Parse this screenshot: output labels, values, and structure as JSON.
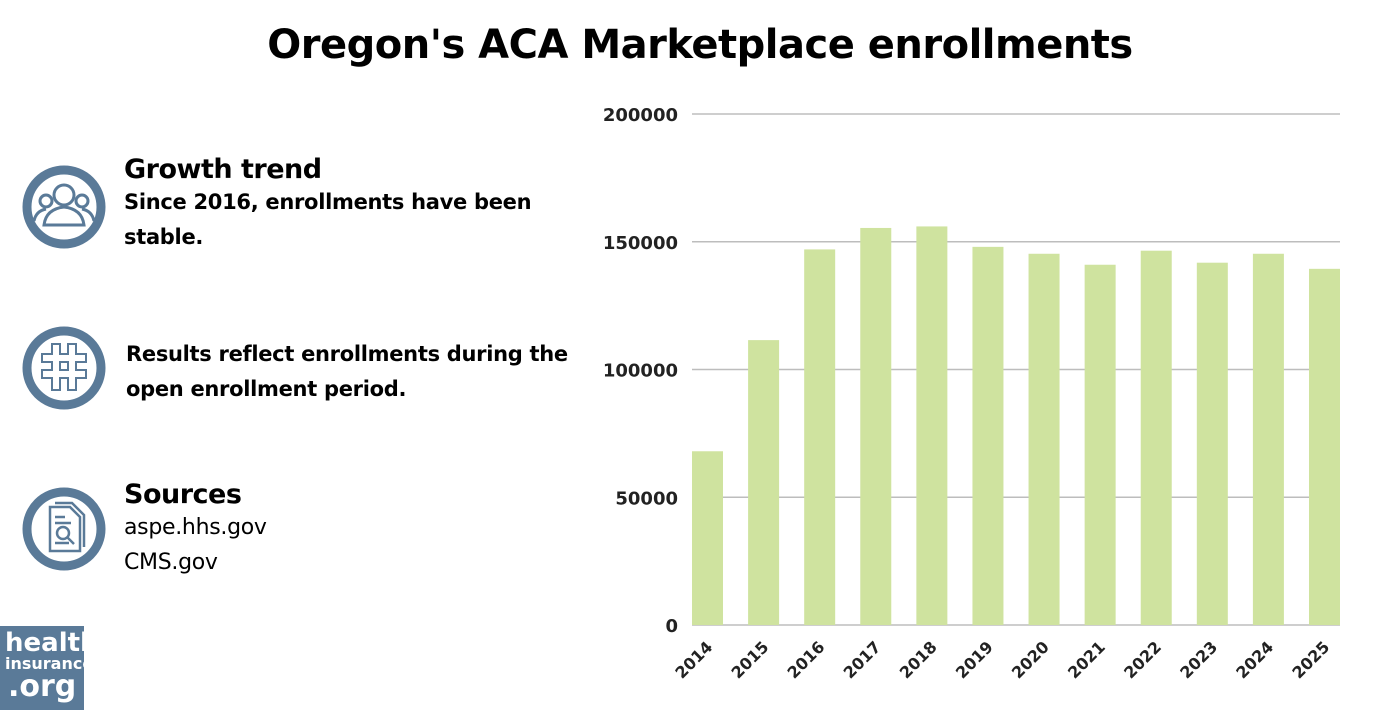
{
  "chart_data": {
    "type": "bar",
    "title": "Oregon's ACA Marketplace enrollments",
    "categories": [
      "2014",
      "2015",
      "2016",
      "2017",
      "2018",
      "2019",
      "2020",
      "2021",
      "2022",
      "2023",
      "2024",
      "2025"
    ],
    "values": [
      68000,
      111500,
      147000,
      155400,
      156000,
      148000,
      145300,
      141000,
      146500,
      141800,
      145300,
      139400
    ],
    "ylim": [
      0,
      200000
    ],
    "yticks": [
      "0",
      "50000",
      "100000",
      "150000",
      "200000"
    ],
    "grid": true,
    "bar_color": "#cfe39f"
  },
  "panels": [
    {
      "icon": "people-icon",
      "heading": "Growth trend",
      "text": "Since 2016, enrollments have been stable."
    },
    {
      "icon": "hashtag-icon",
      "text": "Results reflect enrollments during the open enrollment period."
    },
    {
      "icon": "document-search-icon",
      "heading": "Sources",
      "lines": [
        "aspe.hhs.gov",
        "CMS.gov"
      ]
    }
  ],
  "logo": {
    "text": "healthinsurance.org",
    "color": "#5a7a98"
  }
}
